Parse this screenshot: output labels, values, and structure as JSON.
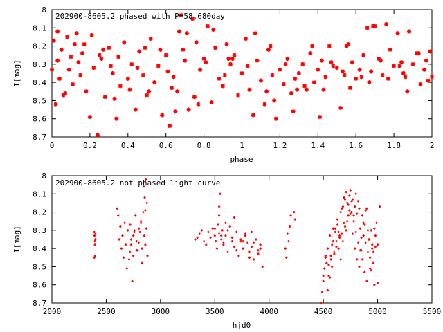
{
  "chart_data": [
    {
      "type": "scatter",
      "title": "202900-8605.2 phased with P=58.680day",
      "xlabel": "phase",
      "ylabel": "I[mag]",
      "xlim": [
        0,
        2
      ],
      "ylim": [
        8.7,
        8.0
      ],
      "y_reversed": true,
      "x_ticks": [
        "0",
        "0.2",
        "0.4",
        "0.6",
        "0.8",
        "1",
        "1.2",
        "1.4",
        "1.6",
        "1.8",
        "2"
      ],
      "y_ticks": [
        "8",
        "8.1",
        "8.2",
        "8.3",
        "8.4",
        "8.5",
        "8.6",
        "8.7"
      ],
      "marker": "star",
      "color": "#ff0000",
      "series": [
        {
          "x": [
            0.0,
            0.01,
            0.02,
            0.03,
            0.04,
            0.05,
            0.06,
            0.08,
            0.09,
            0.11,
            0.12,
            0.14,
            0.15,
            0.16,
            0.18,
            0.2,
            0.21,
            0.22,
            0.24,
            0.26,
            0.28,
            0.3,
            0.32,
            0.34,
            0.36,
            0.38,
            0.4,
            0.42,
            0.44,
            0.46,
            0.48,
            0.5,
            0.52,
            0.54,
            0.56,
            0.58,
            0.6,
            0.62,
            0.64,
            0.66,
            0.67,
            0.68,
            0.69,
            0.7,
            0.72,
            0.74,
            0.76,
            0.78,
            0.8,
            0.82,
            0.84,
            0.86,
            0.88,
            0.9,
            0.92,
            0.94,
            0.96,
            0.98,
            1.0,
            1.02,
            1.04,
            1.06,
            1.08,
            1.1,
            1.12,
            1.14,
            1.16,
            1.18,
            1.2,
            1.22,
            1.24,
            1.26,
            1.28,
            1.3,
            1.32,
            1.34,
            1.36,
            1.38,
            1.4,
            1.42,
            1.44,
            1.46,
            1.48,
            1.5,
            1.52,
            1.54,
            1.56,
            1.58,
            1.6,
            1.62,
            1.64,
            1.66,
            1.68,
            1.7,
            1.72,
            1.74,
            1.76,
            1.78,
            1.8,
            1.82,
            1.84,
            1.86,
            1.88,
            1.9,
            1.92,
            1.94,
            1.96,
            1.98,
            2.0,
            0.03,
            0.07,
            0.13,
            0.17,
            0.25,
            0.31,
            0.35,
            0.41,
            0.45,
            0.51,
            0.57,
            0.61,
            0.65,
            0.71,
            0.75,
            0.81,
            0.85,
            0.91,
            0.95,
            1.03,
            1.07,
            1.13,
            1.17,
            1.23,
            1.27,
            1.33,
            1.37,
            1.43,
            1.47,
            1.53,
            1.57,
            1.63,
            1.67,
            1.73,
            1.77,
            1.83,
            1.87,
            1.93,
            1.97,
            0.1,
            0.27,
            0.33,
            0.49,
            0.63,
            0.77,
            0.93,
            1.15,
            1.29,
            1.41,
            1.55,
            1.69,
            1.85,
            1.99
          ],
          "y": [
            8.33,
            8.17,
            8.52,
            8.28,
            8.38,
            8.22,
            8.47,
            8.15,
            8.33,
            8.41,
            8.19,
            8.29,
            8.36,
            8.24,
            8.45,
            8.59,
            8.14,
            8.32,
            8.69,
            8.27,
            8.48,
            8.21,
            8.35,
            8.6,
            8.42,
            8.18,
            8.38,
            8.3,
            8.55,
            8.23,
            8.36,
            8.47,
            8.16,
            8.4,
            8.31,
            8.58,
            8.25,
            8.64,
            8.37,
            8.45,
            8.12,
            8.03,
            8.22,
            8.28,
            8.55,
            8.05,
            8.18,
            8.33,
            8.27,
            8.09,
            8.51,
            8.21,
            8.38,
            8.42,
            8.19,
            8.3,
            8.25,
            8.47,
            8.35,
            8.16,
            8.44,
            8.58,
            8.28,
            8.39,
            8.52,
            8.22,
            8.36,
            8.6,
            8.33,
            8.41,
            8.27,
            8.46,
            8.38,
            8.35,
            8.3,
            8.44,
            8.24,
            8.4,
            8.33,
            8.28,
            8.37,
            8.2,
            8.31,
            8.32,
            8.54,
            8.36,
            8.19,
            8.29,
            8.38,
            8.33,
            8.25,
            8.1,
            8.34,
            8.09,
            8.27,
            8.36,
            8.08,
            8.22,
            8.31,
            8.13,
            8.29,
            8.37,
            8.12,
            8.3,
            8.24,
            8.41,
            8.33,
            8.39,
            8.37,
            8.12,
            8.46,
            8.13,
            8.19,
            8.25,
            8.31,
            8.26,
            8.44,
            8.32,
            8.45,
            8.22,
            8.34,
            8.56,
            8.13,
            8.48,
            8.29,
            8.11,
            8.36,
            8.27,
            8.31,
            8.13,
            8.45,
            8.5,
            8.3,
            8.56,
            8.42,
            8.2,
            8.44,
            8.29,
            8.34,
            8.43,
            8.37,
            8.4,
            8.28,
            8.38,
            8.31,
            8.45,
            8.24,
            8.28,
            8.26,
            8.22,
            8.49,
            8.21,
            8.43,
            8.52,
            8.27,
            8.2,
            8.44,
            8.59,
            8.2,
            8.09,
            8.35,
            8.23
          ]
        }
      ]
    },
    {
      "type": "scatter",
      "title": "202900-8605.2 not phased light curve",
      "xlabel": "hjd0",
      "ylabel": "I[mag]",
      "xlim": [
        2000,
        5500
      ],
      "ylim": [
        8.7,
        8.0
      ],
      "y_reversed": true,
      "x_ticks": [
        "2000",
        "2500",
        "3000",
        "3500",
        "4000",
        "4500",
        "5000",
        "5500"
      ],
      "y_ticks": [
        "8",
        "8.1",
        "8.2",
        "8.3",
        "8.4",
        "8.5",
        "8.6",
        "8.7"
      ],
      "marker": "point",
      "color": "#ff0000",
      "series": [
        {
          "x": [
            2390,
            2390,
            2392,
            2394,
            2396,
            2398,
            2400,
            2402,
            2600,
            2610,
            2620,
            2630,
            2640,
            2650,
            2660,
            2670,
            2680,
            2690,
            2700,
            2710,
            2720,
            2730,
            2740,
            2750,
            2760,
            2770,
            2780,
            2790,
            2800,
            2810,
            2820,
            2830,
            2840,
            2845,
            2850,
            2855,
            2860,
            2865,
            2870,
            2875,
            2880,
            2720,
            2730,
            2750,
            2760,
            2780,
            2800,
            2820,
            2830,
            2860,
            3320,
            3340,
            3360,
            3380,
            3400,
            3420,
            3440,
            3460,
            3480,
            3500,
            3510,
            3520,
            3530,
            3540,
            3550,
            3560,
            3570,
            3580,
            3600,
            3620,
            3640,
            3660,
            3680,
            3700,
            3720,
            3740,
            3760,
            3780,
            3800,
            3820,
            3840,
            3860,
            3880,
            3900,
            3920,
            3940,
            3500,
            3540,
            3560,
            3580,
            3620,
            3660,
            3700,
            3740,
            3780,
            3820,
            3860,
            3900,
            3540,
            3600,
            3680,
            3760,
            3840,
            3920,
            4150,
            4160,
            4170,
            4180,
            4190,
            4200,
            4230,
            4240,
            4480,
            4490,
            4500,
            4510,
            4520,
            4530,
            4540,
            4550,
            4560,
            4570,
            4580,
            4590,
            4600,
            4610,
            4620,
            4630,
            4640,
            4650,
            4660,
            4670,
            4680,
            4690,
            4700,
            4710,
            4720,
            4730,
            4740,
            4750,
            4760,
            4770,
            4780,
            4790,
            4800,
            4810,
            4820,
            4830,
            4840,
            4850,
            4860,
            4870,
            4880,
            4890,
            4900,
            4910,
            4920,
            4930,
            4940,
            4950,
            4960,
            4970,
            4980,
            4990,
            5000,
            5020,
            4500,
            4520,
            4540,
            4560,
            4580,
            4600,
            4620,
            4640,
            4660,
            4680,
            4700,
            4720,
            4740,
            4760,
            4780,
            4800,
            4820,
            4840,
            4860,
            4880,
            4900,
            4920,
            4940,
            4960,
            4980,
            5000,
            4550,
            4570,
            4590,
            4610,
            4630,
            4650,
            4670,
            4690,
            4710,
            4730,
            4750,
            4770,
            4790,
            4810,
            4830,
            4850,
            4870,
            4890,
            4910,
            4930,
            4950,
            4970
          ],
          "y": [
            8.31,
            8.45,
            8.33,
            8.36,
            8.38,
            8.44,
            8.35,
            8.32,
            8.18,
            8.22,
            8.35,
            8.28,
            8.4,
            8.33,
            8.45,
            8.26,
            8.38,
            8.51,
            8.3,
            8.46,
            8.27,
            8.35,
            8.58,
            8.44,
            8.3,
            8.22,
            8.36,
            8.41,
            8.29,
            8.31,
            8.25,
            8.4,
            8.2,
            8.06,
            8.33,
            8.12,
            8.38,
            8.02,
            8.29,
            8.15,
            8.44,
            8.42,
            8.38,
            8.33,
            8.31,
            8.41,
            8.37,
            8.26,
            8.48,
            8.19,
            8.35,
            8.34,
            8.32,
            8.3,
            8.36,
            8.38,
            8.31,
            8.34,
            8.29,
            8.33,
            8.36,
            8.4,
            8.27,
            8.32,
            8.1,
            8.35,
            8.3,
            8.37,
            8.33,
            8.42,
            8.28,
            8.36,
            8.39,
            8.31,
            8.44,
            8.35,
            8.4,
            8.33,
            8.37,
            8.42,
            8.39,
            8.46,
            8.35,
            8.41,
            8.38,
            8.5,
            8.29,
            8.22,
            8.33,
            8.38,
            8.3,
            8.34,
            8.41,
            8.36,
            8.32,
            8.45,
            8.37,
            8.43,
            8.17,
            8.26,
            8.23,
            8.36,
            8.31,
            8.4,
            8.4,
            8.45,
            8.32,
            8.36,
            8.28,
            8.22,
            8.2,
            8.24,
            8.7,
            8.64,
            8.58,
            8.51,
            8.45,
            8.48,
            8.4,
            8.55,
            8.33,
            8.46,
            8.38,
            8.29,
            8.42,
            8.31,
            8.36,
            8.27,
            8.4,
            8.34,
            8.2,
            8.32,
            8.17,
            8.26,
            8.13,
            8.3,
            8.15,
            8.22,
            8.11,
            8.08,
            8.2,
            8.13,
            8.25,
            8.17,
            8.1,
            8.21,
            8.14,
            8.18,
            8.29,
            8.41,
            8.22,
            8.33,
            8.27,
            8.37,
            8.18,
            8.3,
            8.35,
            8.45,
            8.52,
            8.4,
            8.48,
            8.6,
            8.33,
            8.26,
            8.38,
            8.17,
            8.55,
            8.44,
            8.63,
            8.56,
            8.5,
            8.43,
            8.39,
            8.31,
            8.46,
            8.36,
            8.28,
            8.25,
            8.19,
            8.14,
            8.22,
            8.31,
            8.37,
            8.41,
            8.46,
            8.53,
            8.58,
            8.35,
            8.3,
            8.42,
            8.39,
            8.59,
            8.49,
            8.44,
            8.36,
            8.29,
            8.24,
            8.33,
            8.18,
            8.12,
            8.09,
            8.16,
            8.21,
            8.32,
            8.4,
            8.46,
            8.5,
            8.34,
            8.26,
            8.19,
            8.42,
            8.51,
            8.38,
            8.29
          ]
        }
      ]
    }
  ]
}
